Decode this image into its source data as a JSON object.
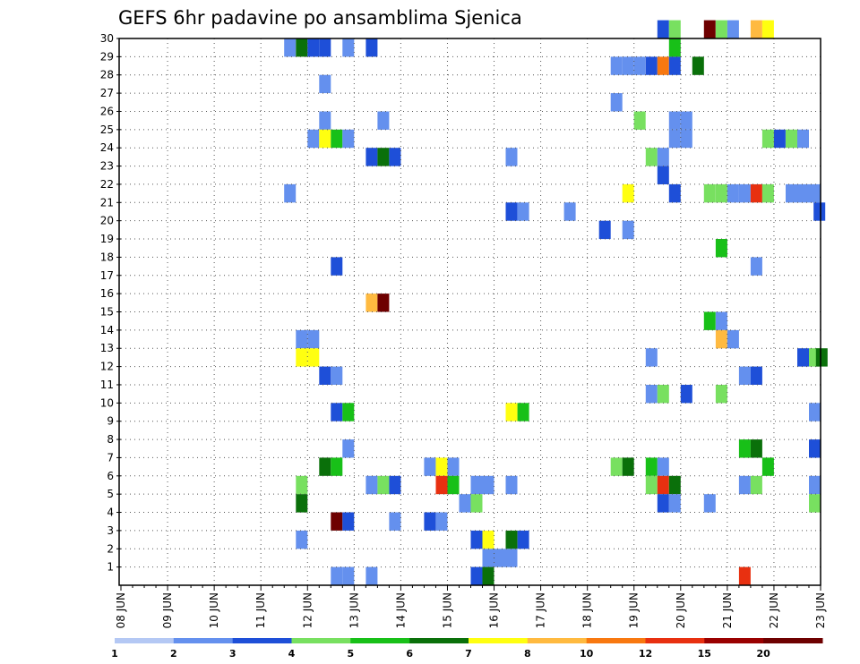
{
  "chart_data": {
    "type": "heatmap",
    "title": "GEFS 6hr padavine po ansamblima Sjenica",
    "x_ticks": [
      "08 JUN",
      "09 JUN",
      "10 JUN",
      "11 JUN",
      "12 JUN",
      "13 JUN",
      "14 JUN",
      "15 JUN",
      "16 JUN",
      "17 JUN",
      "18 JUN",
      "19 JUN",
      "20 JUN",
      "21 JUN",
      "22 JUN",
      "23 JUN"
    ],
    "y_ticks": [
      "1",
      "2",
      "3",
      "4",
      "5",
      "6",
      "7",
      "8",
      "9",
      "10",
      "11",
      "12",
      "13",
      "14",
      "15",
      "16",
      "17",
      "18",
      "19",
      "20",
      "21",
      "22",
      "23",
      "24",
      "25",
      "26",
      "27",
      "28",
      "29",
      "30"
    ],
    "xlim": [
      "08 JUN",
      "23 JUN"
    ],
    "ylim": [
      0,
      30
    ],
    "grid": true,
    "colorbar": {
      "colors": [
        "#b4c8f4",
        "#6490ee",
        "#1e4fd8",
        "#78e060",
        "#18c018",
        "#0a700a",
        "#ffff10",
        "#ffba40",
        "#f87810",
        "#e83010",
        "#9a0000",
        "#6e0000"
      ],
      "tick_labels": [
        "1",
        "2",
        "3",
        "4",
        "5",
        "6",
        "7",
        "8",
        "10",
        "12",
        "15",
        "20"
      ]
    },
    "cells": [
      [
        11.5,
        29.5,
        1
      ],
      [
        11.75,
        29.5,
        5
      ],
      [
        12.0,
        29.5,
        2
      ],
      [
        12.25,
        29.5,
        2
      ],
      [
        12.75,
        29.5,
        1
      ],
      [
        13.25,
        29.5,
        2
      ],
      [
        19.5,
        30.5,
        2
      ],
      [
        19.75,
        30.5,
        3
      ],
      [
        20.5,
        30.5,
        11
      ],
      [
        20.75,
        30.5,
        3
      ],
      [
        21.0,
        30.5,
        1
      ],
      [
        21.5,
        30.5,
        7
      ],
      [
        21.75,
        30.5,
        6
      ],
      [
        18.5,
        28.5,
        1
      ],
      [
        18.75,
        28.5,
        1
      ],
      [
        19.0,
        28.5,
        1
      ],
      [
        19.25,
        28.5,
        2
      ],
      [
        19.5,
        28.5,
        8
      ],
      [
        19.75,
        28.5,
        2
      ],
      [
        20.25,
        28.5,
        5
      ],
      [
        19.75,
        29.5,
        4
      ],
      [
        12.25,
        27.5,
        1
      ],
      [
        18.5,
        26.5,
        1
      ],
      [
        12.25,
        25.5,
        1
      ],
      [
        13.5,
        25.5,
        1
      ],
      [
        19.0,
        25.5,
        3
      ],
      [
        19.75,
        25.5,
        1
      ],
      [
        20.0,
        25.5,
        1
      ],
      [
        12.0,
        24.5,
        1
      ],
      [
        12.25,
        24.5,
        6
      ],
      [
        12.5,
        24.5,
        4
      ],
      [
        12.75,
        24.5,
        1
      ],
      [
        19.75,
        24.5,
        1
      ],
      [
        20.0,
        24.5,
        1
      ],
      [
        21.75,
        24.5,
        3
      ],
      [
        22.0,
        24.5,
        2
      ],
      [
        22.25,
        24.5,
        3
      ],
      [
        22.5,
        24.5,
        1
      ],
      [
        13.25,
        23.5,
        2
      ],
      [
        13.5,
        23.5,
        5
      ],
      [
        13.75,
        23.5,
        2
      ],
      [
        16.25,
        23.5,
        1
      ],
      [
        19.25,
        23.5,
        3
      ],
      [
        19.5,
        23.5,
        1
      ],
      [
        19.5,
        22.5,
        2
      ],
      [
        11.5,
        21.5,
        1
      ],
      [
        18.75,
        21.5,
        6
      ],
      [
        19.75,
        21.5,
        2
      ],
      [
        20.5,
        21.5,
        3
      ],
      [
        20.75,
        21.5,
        3
      ],
      [
        21.0,
        21.5,
        1
      ],
      [
        21.25,
        21.5,
        1
      ],
      [
        21.5,
        21.5,
        9
      ],
      [
        21.75,
        21.5,
        3
      ],
      [
        22.25,
        21.5,
        1
      ],
      [
        22.5,
        21.5,
        1
      ],
      [
        22.75,
        21.5,
        1
      ],
      [
        16.25,
        20.5,
        2
      ],
      [
        16.5,
        20.5,
        1
      ],
      [
        17.5,
        20.5,
        1
      ],
      [
        22.85,
        20.5,
        2
      ],
      [
        18.25,
        19.5,
        2
      ],
      [
        18.75,
        19.5,
        1
      ],
      [
        20.75,
        18.5,
        4
      ],
      [
        21.5,
        17.5,
        1
      ],
      [
        12.5,
        17.5,
        2
      ],
      [
        13.25,
        15.5,
        7
      ],
      [
        13.5,
        15.5,
        11
      ],
      [
        20.5,
        14.5,
        4
      ],
      [
        20.75,
        14.5,
        1
      ],
      [
        11.75,
        13.5,
        1
      ],
      [
        12.0,
        13.5,
        1
      ],
      [
        20.75,
        13.5,
        7
      ],
      [
        21.0,
        13.5,
        1
      ],
      [
        11.75,
        12.5,
        6
      ],
      [
        12.0,
        12.5,
        6
      ],
      [
        19.25,
        12.5,
        1
      ],
      [
        22.5,
        12.5,
        2
      ],
      [
        22.75,
        12.5,
        3
      ],
      [
        22.9,
        12.5,
        5
      ],
      [
        12.25,
        11.5,
        2
      ],
      [
        12.5,
        11.5,
        1
      ],
      [
        21.25,
        11.5,
        1
      ],
      [
        21.5,
        11.5,
        2
      ],
      [
        19.25,
        10.5,
        1
      ],
      [
        19.5,
        10.5,
        3
      ],
      [
        20.0,
        10.5,
        2
      ],
      [
        20.75,
        10.5,
        3
      ],
      [
        12.5,
        9.5,
        2
      ],
      [
        12.75,
        9.5,
        4
      ],
      [
        16.25,
        9.5,
        6
      ],
      [
        16.5,
        9.5,
        4
      ],
      [
        22.75,
        9.5,
        1
      ],
      [
        12.75,
        7.5,
        1
      ],
      [
        21.25,
        7.5,
        4
      ],
      [
        21.5,
        7.5,
        5
      ],
      [
        22.75,
        7.5,
        2
      ],
      [
        12.25,
        6.5,
        5
      ],
      [
        12.5,
        6.5,
        4
      ],
      [
        14.5,
        6.5,
        1
      ],
      [
        14.75,
        6.5,
        6
      ],
      [
        15.0,
        6.5,
        1
      ],
      [
        18.5,
        6.5,
        3
      ],
      [
        18.75,
        6.5,
        5
      ],
      [
        19.25,
        6.5,
        4
      ],
      [
        19.5,
        6.5,
        1
      ],
      [
        21.75,
        6.5,
        4
      ],
      [
        11.75,
        5.5,
        3
      ],
      [
        13.25,
        5.5,
        1
      ],
      [
        13.5,
        5.5,
        3
      ],
      [
        13.75,
        5.5,
        2
      ],
      [
        14.75,
        5.5,
        9
      ],
      [
        15.0,
        5.5,
        4
      ],
      [
        15.5,
        5.5,
        1
      ],
      [
        15.75,
        5.5,
        1
      ],
      [
        16.25,
        5.5,
        1
      ],
      [
        19.25,
        5.5,
        3
      ],
      [
        19.5,
        5.5,
        9
      ],
      [
        19.75,
        5.5,
        5
      ],
      [
        21.25,
        5.5,
        1
      ],
      [
        21.5,
        5.5,
        3
      ],
      [
        22.75,
        5.5,
        1
      ],
      [
        11.75,
        4.5,
        5
      ],
      [
        15.25,
        4.5,
        1
      ],
      [
        15.5,
        4.5,
        3
      ],
      [
        19.5,
        4.5,
        2
      ],
      [
        19.75,
        4.5,
        1
      ],
      [
        20.5,
        4.5,
        1
      ],
      [
        22.75,
        4.5,
        3
      ],
      [
        12.5,
        3.5,
        11
      ],
      [
        12.75,
        3.5,
        2
      ],
      [
        13.75,
        3.5,
        1
      ],
      [
        14.5,
        3.5,
        2
      ],
      [
        14.75,
        3.5,
        1
      ],
      [
        11.75,
        2.5,
        1
      ],
      [
        15.5,
        2.5,
        2
      ],
      [
        15.75,
        2.5,
        6
      ],
      [
        16.25,
        2.5,
        5
      ],
      [
        16.5,
        2.5,
        2
      ],
      [
        15.75,
        1.5,
        1
      ],
      [
        16.0,
        1.5,
        1
      ],
      [
        16.25,
        1.5,
        1
      ],
      [
        12.5,
        0.5,
        1
      ],
      [
        12.75,
        0.5,
        1
      ],
      [
        13.25,
        0.5,
        1
      ],
      [
        15.5,
        0.5,
        2
      ],
      [
        15.75,
        0.5,
        5
      ],
      [
        21.25,
        0.5,
        9
      ]
    ]
  }
}
